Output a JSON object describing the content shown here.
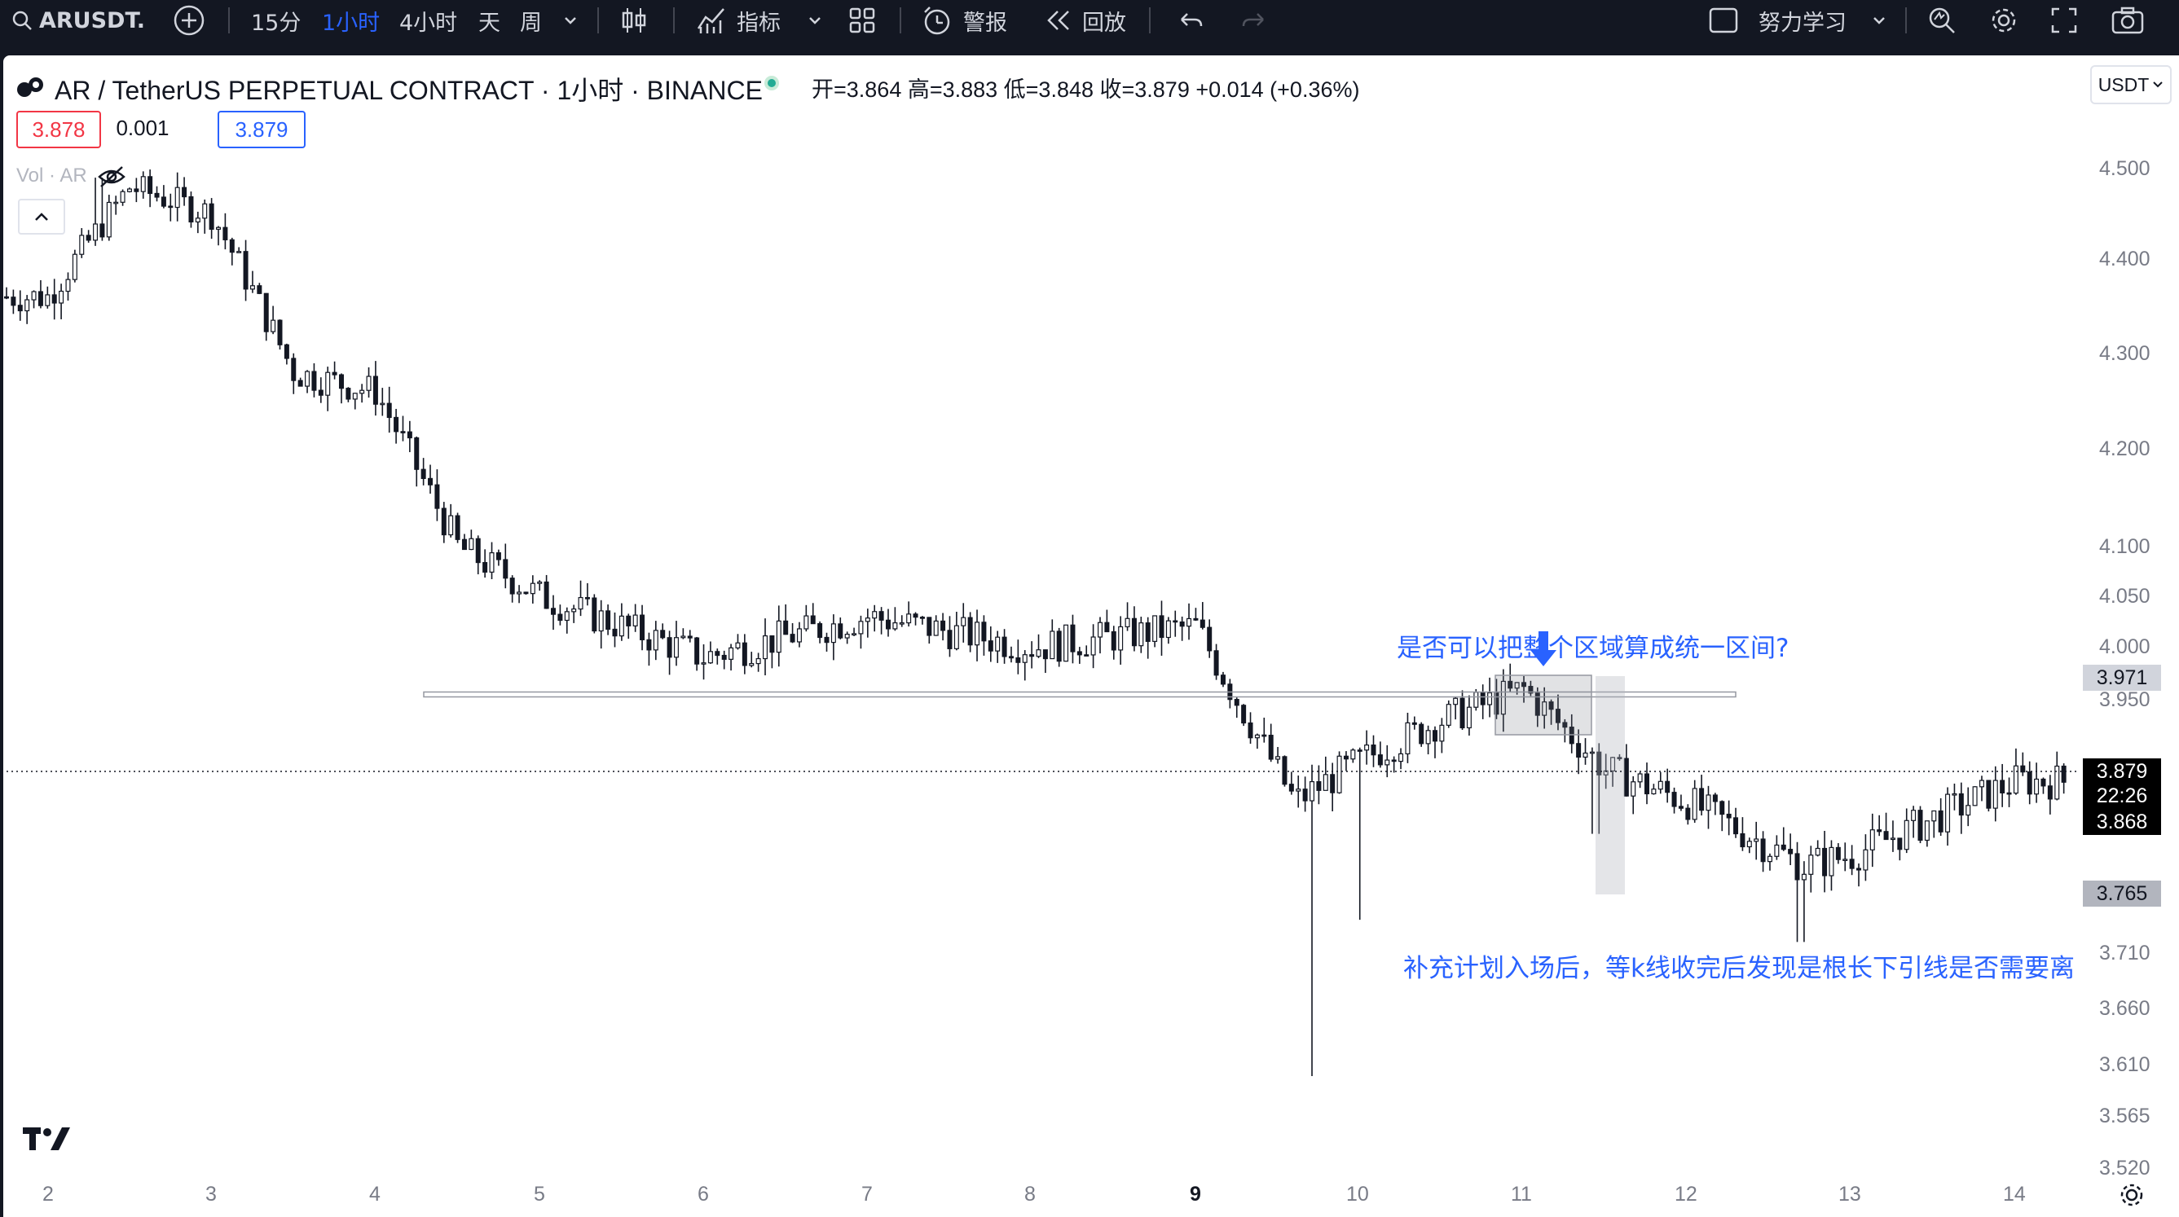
{
  "toolbar": {
    "symbol": "ARUSDT.",
    "intervals": [
      "15分",
      "1小时",
      "4小时",
      "天",
      "周"
    ],
    "active_interval": "1小时",
    "indicators_label": "指标",
    "alert_label": "警报",
    "replay_label": "回放",
    "layout_name": "努力学习"
  },
  "legend": {
    "title": "AR / TetherUS PERPETUAL CONTRACT · 1小时 · BINANCE",
    "ohlc": "开=3.864  高=3.883  低=3.848  收=3.879  +0.014 (+0.36%)",
    "sell_price": "3.878",
    "spread": "0.001",
    "buy_price": "3.879",
    "volume_label": "Vol · AR"
  },
  "currency": "USDT",
  "price_axis": {
    "ticks": [
      "4.500",
      "4.400",
      "4.300",
      "4.200",
      "4.100",
      "4.050",
      "4.000",
      "3.950",
      "3.710",
      "3.660",
      "3.610",
      "3.565",
      "3.520"
    ],
    "badges": {
      "level_high": "3.971",
      "last_price": "3.879",
      "countdown": "22:26",
      "level_mid": "3.868",
      "level_low": "3.765"
    }
  },
  "time_axis": {
    "labels": [
      "2",
      "3",
      "4",
      "5",
      "6",
      "7",
      "8",
      "9",
      "10",
      "11",
      "12",
      "13",
      "14"
    ]
  },
  "annotations": {
    "question": "是否可以把整个区域算成统一区间?",
    "note": "补充计划入场后，等k线收完后发现是根长下引线是否需要离"
  },
  "colors": {
    "accent": "#2962ff",
    "candle": "#131722",
    "sell": "#f23645",
    "toolbar_bg": "#131722"
  },
  "chart_data": {
    "type": "candlestick",
    "x_labels": [
      "2",
      "3",
      "4",
      "5",
      "6",
      "7",
      "8",
      "9",
      "10",
      "11",
      "12",
      "13",
      "14"
    ],
    "ylim": [
      3.5,
      4.55
    ],
    "approx_close_path": [
      {
        "day": "2",
        "close": 4.36
      },
      {
        "day": "2.5",
        "close": 4.48
      },
      {
        "day": "3",
        "close": 4.45
      },
      {
        "day": "3.5",
        "close": 4.28
      },
      {
        "day": "4",
        "close": 4.26
      },
      {
        "day": "4.5",
        "close": 4.1
      },
      {
        "day": "5",
        "close": 4.05
      },
      {
        "day": "6",
        "close": 3.99
      },
      {
        "day": "7",
        "close": 4.03
      },
      {
        "day": "8",
        "close": 4.0
      },
      {
        "day": "9",
        "close": 4.02
      },
      {
        "day": "9.6",
        "close": 3.85
      },
      {
        "day": "10",
        "close": 3.89
      },
      {
        "day": "10.5",
        "close": 3.93
      },
      {
        "day": "11",
        "close": 3.96
      },
      {
        "day": "11.5",
        "close": 3.88
      },
      {
        "day": "12",
        "close": 3.85
      },
      {
        "day": "12.7",
        "close": 3.79
      },
      {
        "day": "13",
        "close": 3.8
      },
      {
        "day": "14",
        "close": 3.87
      }
    ],
    "extremes": {
      "high": 4.49,
      "low": 3.6
    },
    "support_line": 3.955,
    "last_price": 3.879
  }
}
